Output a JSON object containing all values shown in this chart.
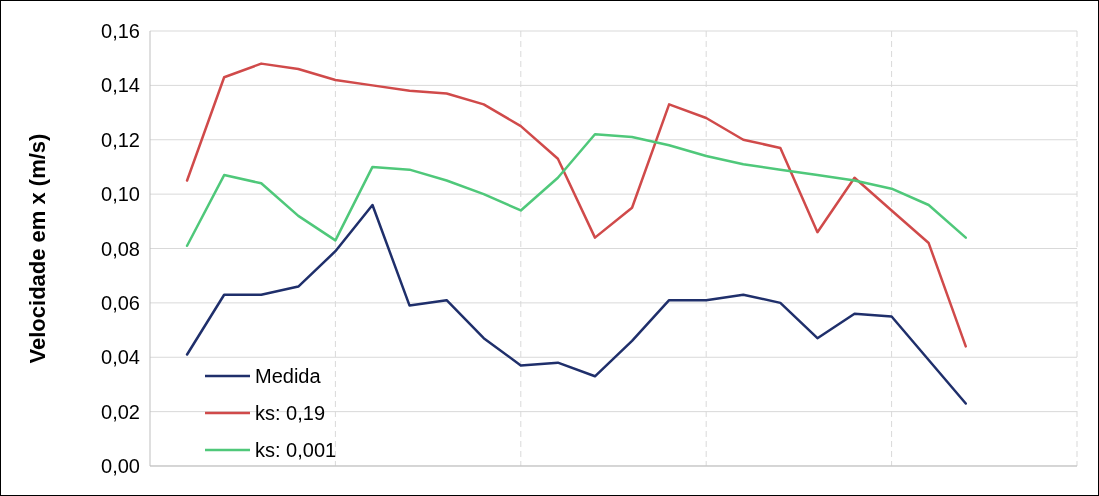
{
  "chart_data": {
    "type": "line",
    "ylabel": "Velocidade em x (m/s)",
    "categories": [
      null,
      null,
      null,
      null,
      null,
      null,
      null,
      null,
      null,
      null,
      null,
      null,
      null,
      null,
      null,
      null,
      null,
      null,
      null,
      null,
      null,
      null
    ],
    "ylim": [
      0,
      0.16
    ],
    "yticks": [
      {
        "value": 0,
        "label": "0,00"
      },
      {
        "value": 0.02,
        "label": "0,02"
      },
      {
        "value": 0.04,
        "label": "0,04"
      },
      {
        "value": 0.06,
        "label": "0,06"
      },
      {
        "value": 0.08,
        "label": "0,08"
      },
      {
        "value": 0.1,
        "label": "0,10"
      },
      {
        "value": 0.12,
        "label": "0,12"
      },
      {
        "value": 0.14,
        "label": "0,14"
      },
      {
        "value": 0.16,
        "label": "0,16"
      }
    ],
    "series": [
      {
        "name": "Medida",
        "color": "#1f2f6b",
        "values": [
          0.041,
          0.063,
          0.063,
          0.066,
          0.079,
          0.096,
          0.059,
          0.061,
          0.047,
          0.037,
          0.038,
          0.033,
          0.046,
          0.061,
          0.061,
          0.063,
          0.06,
          0.047,
          0.056,
          0.055,
          0.039,
          0.023
        ]
      },
      {
        "name": "ks: 0,19",
        "color": "#d04a4a",
        "values": [
          0.105,
          0.143,
          0.148,
          0.146,
          0.142,
          0.14,
          0.138,
          0.137,
          0.133,
          0.125,
          0.113,
          0.084,
          0.095,
          0.133,
          0.128,
          0.12,
          0.117,
          0.086,
          0.106,
          0.094,
          0.082,
          0.044
        ]
      },
      {
        "name": "ks: 0,001",
        "color": "#4fc87a",
        "values": [
          0.081,
          0.107,
          0.104,
          0.092,
          0.083,
          0.11,
          0.109,
          0.105,
          0.1,
          0.094,
          0.106,
          0.122,
          0.121,
          0.118,
          0.114,
          0.111,
          0.109,
          0.107,
          0.105,
          0.102,
          0.096,
          0.084
        ]
      }
    ],
    "grid": true,
    "legend": "bottom left",
    "marker": "none",
    "line_style": "solid"
  }
}
